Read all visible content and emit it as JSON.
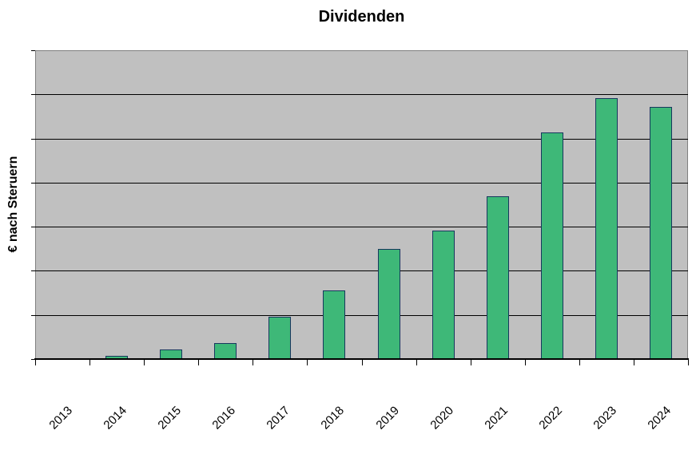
{
  "chart_data": {
    "type": "bar",
    "title": "Dividenden",
    "ylabel": "€ nach Steruern",
    "xlabel": "",
    "categories": [
      "2013",
      "2014",
      "2015",
      "2016",
      "2017",
      "2018",
      "2019",
      "2020",
      "2021",
      "2022",
      "2023",
      "2024"
    ],
    "values": [
      0,
      0.07,
      0.22,
      0.37,
      0.96,
      1.56,
      2.49,
      2.91,
      3.69,
      5.14,
      5.92,
      5.72
    ],
    "values_note": "gridline-interval units; chart shows no numeric y-axis tick labels",
    "ylim": [
      0,
      7
    ],
    "y_tick_labels_visible": false,
    "grid": "horizontal",
    "legend": "none",
    "x_label_rotation_deg": 45,
    "colors": {
      "bar_fill": "#3EB878",
      "bar_border": "#17375E",
      "plot_background": "#C0C0C0",
      "gridline": "#000000",
      "plot_border": "#808080",
      "axis": "#000000",
      "text": "#000000",
      "page_background": "#FFFFFF"
    }
  }
}
